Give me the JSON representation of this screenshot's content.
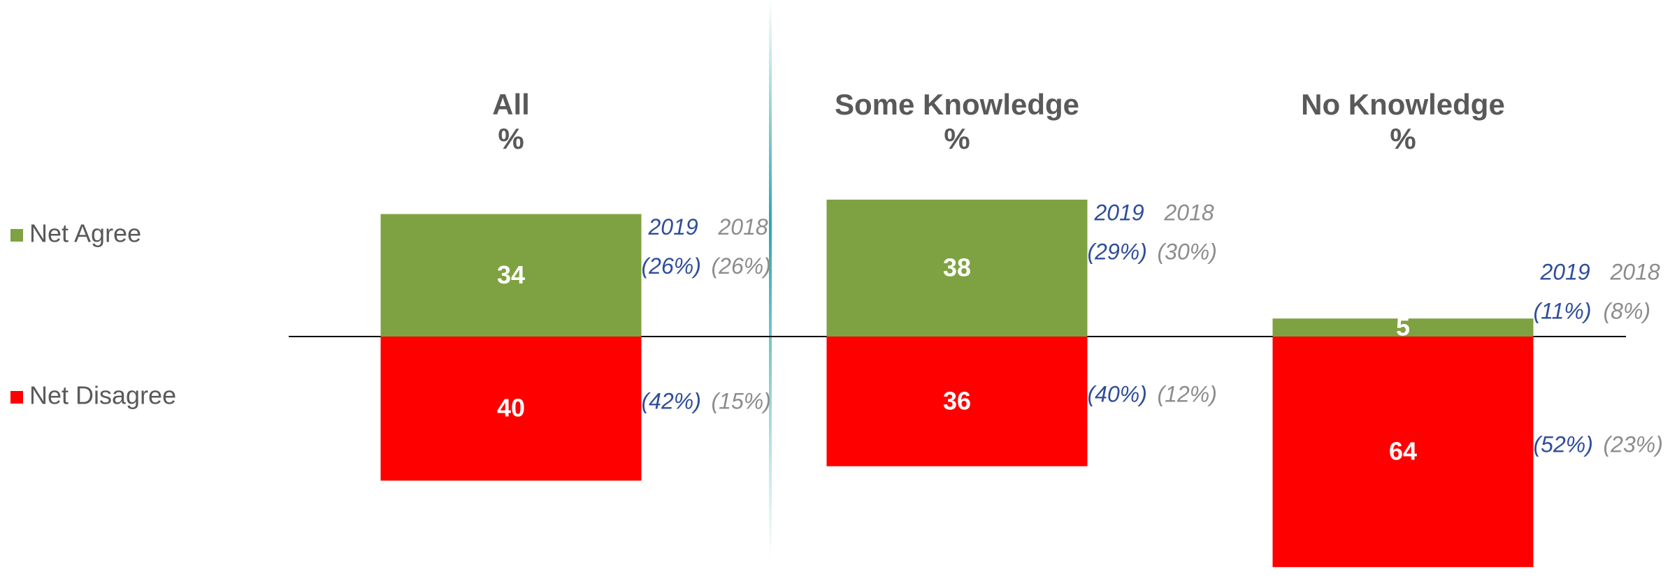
{
  "chart_data": {
    "type": "diverging-bar",
    "categories": [
      "All",
      "Some Knowledge",
      "No Knowledge"
    ],
    "category_unit": "%",
    "series": [
      {
        "name": "Net Agree",
        "color": "#7ea241",
        "direction": "up",
        "values": [
          34,
          38,
          5
        ]
      },
      {
        "name": "Net Disagree",
        "color": "#ff0000",
        "direction": "down",
        "values": [
          40,
          36,
          64
        ]
      }
    ],
    "comparisons": [
      {
        "name": "2019",
        "color": "#2f4d99",
        "series": [
          {
            "values": [
              26,
              29,
              11
            ],
            "value_labels": [
              "(26%)",
              "(29%)",
              "(11%)"
            ]
          },
          {
            "values": [
              42,
              40,
              52
            ],
            "value_labels": [
              "(42%)",
              "(40%)",
              "(52%)"
            ]
          }
        ]
      },
      {
        "name": "2018",
        "color": "#8c8c8c",
        "series": [
          {
            "values": [
              26,
              30,
              8
            ],
            "value_labels": [
              "(26%)",
              "(30%)",
              "(8%)"
            ]
          },
          {
            "values": [
              15,
              12,
              23
            ],
            "value_labels": [
              "(15%)",
              "(12%)",
              "(23%)"
            ]
          }
        ]
      }
    ]
  }
}
